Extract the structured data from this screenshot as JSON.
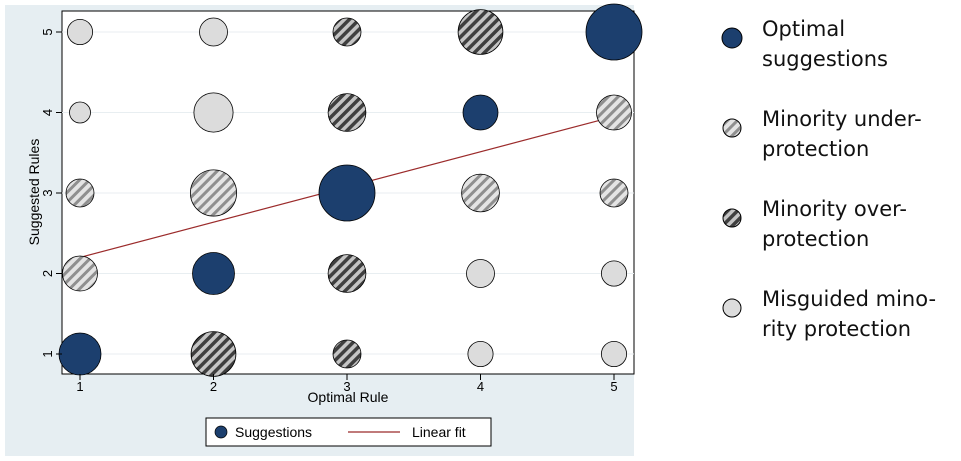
{
  "chart_data": {
    "type": "scatter",
    "xlabel": "Optimal Rule",
    "ylabel": "Suggested Rules",
    "x_ticks": [
      "1",
      "2",
      "3",
      "4",
      "5"
    ],
    "y_ticks": [
      "1",
      "2",
      "3",
      "4",
      "5"
    ],
    "xlim": [
      1,
      5
    ],
    "ylim": [
      1,
      5
    ],
    "grid": true,
    "legend": {
      "position": "bottom",
      "entries": [
        {
          "label": "Suggestions",
          "marker": "circle"
        },
        {
          "label": "Linear fit",
          "marker": "line"
        }
      ]
    },
    "linear_fit": {
      "x": [
        1,
        5
      ],
      "y": [
        2.2,
        3.95
      ]
    },
    "points": [
      {
        "x": 1,
        "y": 1,
        "size": 3,
        "category": "optimal"
      },
      {
        "x": 2,
        "y": 2,
        "size": 3,
        "category": "optimal"
      },
      {
        "x": 3,
        "y": 3,
        "size": 4,
        "category": "optimal"
      },
      {
        "x": 4,
        "y": 4,
        "size": 2.5,
        "category": "optimal"
      },
      {
        "x": 5,
        "y": 5,
        "size": 4,
        "category": "optimal"
      },
      {
        "x": 1,
        "y": 2,
        "size": 2.5,
        "category": "under"
      },
      {
        "x": 1,
        "y": 3,
        "size": 2,
        "category": "under"
      },
      {
        "x": 2,
        "y": 3,
        "size": 3.3,
        "category": "under"
      },
      {
        "x": 4,
        "y": 3,
        "size": 2.7,
        "category": "under"
      },
      {
        "x": 5,
        "y": 3,
        "size": 2,
        "category": "under"
      },
      {
        "x": 5,
        "y": 4,
        "size": 2.5,
        "category": "under"
      },
      {
        "x": 2,
        "y": 1,
        "size": 3.2,
        "category": "over"
      },
      {
        "x": 3,
        "y": 1,
        "size": 2,
        "category": "over"
      },
      {
        "x": 3,
        "y": 2,
        "size": 2.7,
        "category": "over"
      },
      {
        "x": 3,
        "y": 4,
        "size": 2.7,
        "category": "over"
      },
      {
        "x": 3,
        "y": 5,
        "size": 2,
        "category": "over"
      },
      {
        "x": 4,
        "y": 5,
        "size": 3.2,
        "category": "over"
      },
      {
        "x": 1,
        "y": 4,
        "size": 1.5,
        "category": "misguided"
      },
      {
        "x": 1,
        "y": 5,
        "size": 1.8,
        "category": "misguided"
      },
      {
        "x": 2,
        "y": 4,
        "size": 2.8,
        "category": "misguided"
      },
      {
        "x": 2,
        "y": 5,
        "size": 2,
        "category": "misguided"
      },
      {
        "x": 4,
        "y": 1,
        "size": 1.8,
        "category": "misguided"
      },
      {
        "x": 4,
        "y": 2,
        "size": 2,
        "category": "misguided"
      },
      {
        "x": 5,
        "y": 1,
        "size": 1.8,
        "category": "misguided"
      },
      {
        "x": 5,
        "y": 2,
        "size": 1.8,
        "category": "misguided"
      }
    ]
  },
  "colors": {
    "optimal": "#1c3f6e",
    "fit_line": "#9b2b2b",
    "frame_bg": "#e6eef2",
    "misguided": "#dcdcdc",
    "under_base": "#e4e4e4",
    "under_stripe": "#8f8f8f",
    "over_base": "#c4c4c4",
    "over_stripe": "#3f3f3f"
  },
  "side_legend": [
    {
      "key": "optimal",
      "label": "Optimal\nsuggestions",
      "icon": "solid-navy-circle"
    },
    {
      "key": "under",
      "label": "Minority under-\nprotection",
      "icon": "light-striped-circle"
    },
    {
      "key": "over",
      "label": "Minority over-\nprotection",
      "icon": "dark-striped-circle"
    },
    {
      "key": "misguided",
      "label": "Misguided mino-\nrity protection",
      "icon": "light-grey-circle"
    }
  ]
}
